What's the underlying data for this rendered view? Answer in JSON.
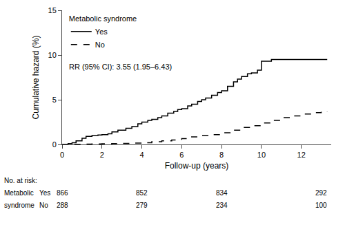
{
  "chart_data": {
    "type": "step",
    "xlabel": "Follow-up (years)",
    "ylabel": "Cumulative hazard (%)",
    "xlim": [
      0,
      13.5
    ],
    "ylim": [
      0,
      15
    ],
    "xticks": [
      0,
      2,
      4,
      6,
      8,
      10,
      12
    ],
    "yticks": [
      0,
      5,
      10,
      15
    ],
    "grid": false,
    "legend": "upper left",
    "legend_title": "Metabolic syndrome",
    "annotations": [
      "RR (95% CI): 3.55 (1.95–6.43)"
    ],
    "series": [
      {
        "name": "Yes",
        "color": "#000000",
        "line_style": "solid",
        "x": [
          0,
          0.3,
          0.5,
          0.7,
          1.0,
          1.2,
          1.5,
          1.8,
          2.0,
          2.3,
          2.5,
          2.8,
          3.2,
          3.5,
          3.8,
          4.0,
          4.3,
          4.5,
          4.8,
          5.0,
          5.3,
          5.6,
          5.8,
          6.0,
          6.3,
          6.5,
          6.8,
          7.0,
          7.2,
          7.5,
          7.8,
          8.0,
          8.3,
          8.6,
          8.8,
          9.0,
          9.3,
          9.5,
          9.8,
          10.0,
          10.5,
          11.0,
          11.5,
          12.0,
          12.5,
          13.0,
          13.3
        ],
        "values": [
          0,
          0.1,
          0.2,
          0.4,
          0.7,
          0.9,
          1.0,
          1.05,
          1.1,
          1.2,
          1.4,
          1.6,
          1.8,
          2.0,
          2.3,
          2.5,
          2.7,
          2.8,
          3.0,
          3.2,
          3.5,
          3.7,
          3.9,
          4.0,
          4.3,
          4.5,
          4.8,
          5.0,
          5.2,
          5.5,
          5.8,
          6.0,
          6.5,
          7.0,
          7.3,
          7.6,
          7.9,
          8.0,
          8.3,
          9.3,
          9.5,
          9.5,
          9.5,
          9.5,
          9.5,
          9.5,
          9.5
        ]
      },
      {
        "name": "No",
        "color": "#000000",
        "line_style": "dash",
        "x": [
          0,
          0.5,
          1.0,
          1.5,
          2.0,
          2.5,
          3.0,
          3.5,
          4.0,
          4.5,
          5.0,
          5.5,
          6.0,
          6.5,
          7.0,
          7.5,
          8.0,
          8.5,
          9.0,
          9.5,
          10.0,
          10.5,
          11.0,
          11.5,
          12.0,
          12.5,
          13.0,
          13.3
        ],
        "values": [
          0,
          0.02,
          0.04,
          0.06,
          0.08,
          0.1,
          0.12,
          0.15,
          0.2,
          0.3,
          0.4,
          0.5,
          0.65,
          0.85,
          1.0,
          1.1,
          1.3,
          1.6,
          1.9,
          2.1,
          2.4,
          2.7,
          3.0,
          3.2,
          3.4,
          3.55,
          3.65,
          3.7
        ]
      }
    ],
    "at_risk": {
      "label": "No. at risk:",
      "group_label": [
        "Metabolic",
        "syndrome"
      ],
      "x": [
        0,
        4,
        8,
        13
      ],
      "rows": [
        {
          "name": "Yes",
          "values": [
            866,
            852,
            834,
            292
          ]
        },
        {
          "name": "No",
          "values": [
            288,
            279,
            234,
            100
          ]
        }
      ]
    }
  }
}
